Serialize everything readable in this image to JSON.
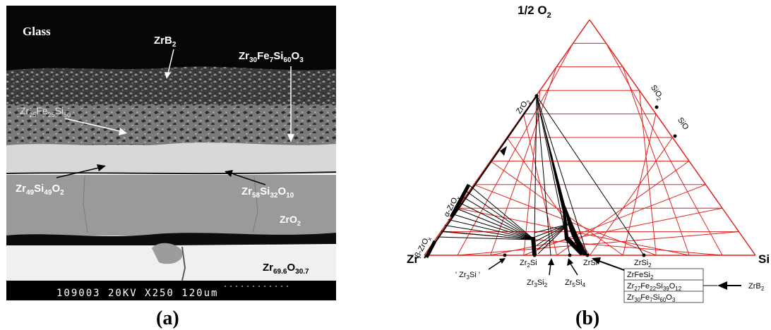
{
  "panel_a": {
    "label": "(a)",
    "glass": "Glass",
    "zrb2": {
      "main": "ZrB",
      "sub": "2"
    },
    "zr30": [
      [
        "Zr",
        "30"
      ],
      [
        "Fe",
        "7"
      ],
      [
        "Si",
        "60"
      ],
      [
        "O",
        "3"
      ]
    ],
    "zr25": [
      [
        "Zr",
        "25"
      ],
      [
        "Fe",
        "25"
      ],
      [
        "Si",
        "50"
      ]
    ],
    "zr49": [
      [
        "Zr",
        "49"
      ],
      [
        "Si",
        "49"
      ],
      [
        "O",
        "2"
      ]
    ],
    "zr58": [
      [
        "Zr",
        "58"
      ],
      [
        "Si",
        "32"
      ],
      [
        "O",
        "10"
      ]
    ],
    "zro2": {
      "main": "ZrO",
      "sub": "2"
    },
    "zr696": [
      [
        "Zr",
        "69.6"
      ],
      [
        "O",
        "30.7"
      ]
    ],
    "scalebar": "109003 20KV  X250   120um",
    "colors": {
      "glass": "#060606",
      "coating": "#4a4a4a",
      "light_layer": "#d8d8d8",
      "zro2_layer": "#9a9a9a",
      "zr_base": "#f0f0f0",
      "bar": "#000000"
    }
  },
  "panel_b": {
    "label": "(b)",
    "top_vertex": "1/2 O",
    "top_vertex_sub": "2",
    "left_vertex": "Zr",
    "right_vertex": "Si",
    "zro2": "ZrO",
    "zro2_sub": "2",
    "sio2": "SiO",
    "sio2_sub": "2",
    "sio": "SiO",
    "alpha_zrox": "α-ZrO",
    "alpha_zrox_sub": "x",
    "beta_zrox": "β-ZrO",
    "beta_zrox_sub": "x",
    "zr3si": "' Zr",
    "zr3si_sub": "3",
    "zr3si_tail": "Si '",
    "zr2si": "Zr",
    "zr2si_sub": "2",
    "zr2si_tail": "Si",
    "zr3si2": "Zr",
    "zr3si2_sub1": "3",
    "zr3si2_mid": "Si",
    "zr3si2_sub2": "2",
    "zr5si4": "Zr",
    "zr5si4_sub1": "5",
    "zr5si4_mid": "Si",
    "zr5si4_sub2": "4",
    "zrsi": "ZrSi",
    "zrsi2": "ZrSi",
    "zrsi2_sub": "2",
    "box_line1": [
      [
        "ZrFeSi",
        "2"
      ]
    ],
    "box_line2": [
      [
        "Zr",
        "27"
      ],
      [
        "Fe",
        "22"
      ],
      [
        "Si",
        "39"
      ],
      [
        "O",
        "12"
      ]
    ],
    "box_line3": [
      [
        "Zr",
        "30"
      ],
      [
        "Fe",
        "7"
      ],
      [
        "Si",
        "60"
      ],
      [
        "O",
        "3"
      ]
    ],
    "zrb2": "ZrB",
    "zrb2_sub": "2",
    "colors": {
      "grid": "#e0201f",
      "ink": "#000000"
    }
  }
}
